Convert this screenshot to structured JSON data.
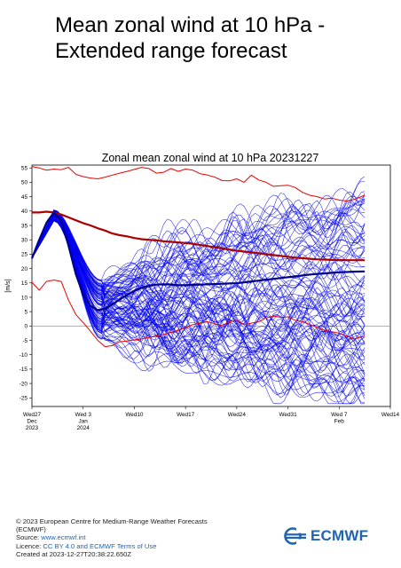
{
  "header": {
    "title_line1": "Mean zonal wind at 10 hPa -",
    "title_line2": "Extended range forecast"
  },
  "colors": {
    "ensemble": "#0000ee",
    "ensemble_mean": "#00008b",
    "climate_mean": "#aa0000",
    "climate_extremes": "#ee0000",
    "zero_line": "#888888",
    "brand": "#1f63b3"
  },
  "footer": {
    "copyright_line1": "© 2023 European Centre for Medium-Range Weather Forecasts",
    "copyright_line2": "(ECMWF)",
    "source_label": "Source:",
    "source_link": "www.ecmwf.int",
    "licence_label": "Licence:",
    "licence_link": "CC BY 4.0 and ECMWF Terms of Use",
    "created": "Created at 2023-12-27T20:38:22.650Z"
  },
  "logo": {
    "text": "ECMWF"
  },
  "chart_data": {
    "type": "line",
    "title": "Zonal mean zonal wind at 10 hPa 20231227",
    "ylabel": "[m/s]",
    "xlabel": "",
    "ylim": [
      -28,
      56
    ],
    "xlim": [
      0,
      49
    ],
    "x_unit": "days since Wed27 Dec 2023",
    "yticks": [
      -25,
      -20,
      -15,
      -10,
      -5,
      0,
      5,
      10,
      15,
      20,
      25,
      30,
      35,
      40,
      45,
      50,
      55
    ],
    "xticks": [
      {
        "x": 0,
        "lines": [
          "Wed27",
          "Dec",
          "2023"
        ]
      },
      {
        "x": 7,
        "lines": [
          "Wed 3",
          "Jan",
          "2024"
        ]
      },
      {
        "x": 14,
        "lines": [
          "Wed10"
        ]
      },
      {
        "x": 21,
        "lines": [
          "Wed17"
        ]
      },
      {
        "x": 28,
        "lines": [
          "Wed24"
        ]
      },
      {
        "x": 35,
        "lines": [
          "Wed31"
        ]
      },
      {
        "x": 42,
        "lines": [
          "Wed 7",
          "Feb"
        ]
      },
      {
        "x": 49,
        "lines": [
          "Wed14"
        ]
      }
    ],
    "grid": false,
    "forecast_end_day": 45.5,
    "series": [
      {
        "name": "",
        "role": "climate_max",
        "x": [
          0,
          1,
          2,
          3,
          4,
          5,
          6,
          7,
          8,
          9,
          10,
          11,
          12,
          13,
          14,
          15,
          16,
          17,
          18,
          19,
          20,
          21,
          22,
          23,
          24,
          25,
          26,
          27,
          28,
          29,
          30,
          31,
          32,
          33,
          34,
          35,
          36,
          37,
          38,
          39,
          40,
          41,
          42,
          43,
          44,
          45.5
        ],
        "values": [
          55.5,
          55,
          54.2,
          54.6,
          54.4,
          55.2,
          52.8,
          52,
          51.5,
          51.2,
          51.8,
          52.5,
          53.2,
          53.8,
          54.5,
          55.2,
          54.8,
          53.2,
          53.5,
          54.8,
          53.8,
          54.6,
          54.2,
          53,
          52.5,
          51.8,
          50.6,
          50.5,
          51.2,
          50,
          52.5,
          50.8,
          50,
          48.6,
          48.8,
          49,
          48.2,
          46.5,
          45.5,
          45,
          44.2,
          44.5,
          43.8,
          43.5,
          44,
          45.5
        ]
      },
      {
        "name": "",
        "role": "climate_mean",
        "x": [
          0,
          1,
          2,
          3,
          4,
          5,
          6,
          7,
          8,
          9,
          10,
          11,
          12,
          13,
          14,
          15,
          16,
          17,
          18,
          19,
          20,
          21,
          22,
          23,
          24,
          25,
          26,
          27,
          28,
          29,
          30,
          31,
          32,
          33,
          34,
          35,
          36,
          37,
          38,
          39,
          40,
          41,
          42,
          43,
          44,
          45.5
        ],
        "values": [
          39.5,
          39.5,
          39.8,
          39.5,
          38.8,
          37.8,
          36.8,
          35.8,
          35,
          34,
          33.2,
          32.2,
          31.6,
          31.2,
          30.6,
          30.2,
          30,
          29.8,
          29.5,
          29.3,
          29.1,
          28.9,
          28.6,
          28.2,
          27.8,
          27.4,
          27,
          26.6,
          26.2,
          25.9,
          25.6,
          25.3,
          25,
          24.7,
          24.4,
          24.1,
          23.8,
          23.6,
          23.4,
          23.2,
          23.1,
          23,
          23,
          22.9,
          22.9,
          22.9
        ]
      },
      {
        "name": "",
        "role": "climate_min",
        "x": [
          0,
          1,
          2,
          3,
          4,
          5,
          6,
          7,
          8,
          9,
          10,
          11,
          12,
          13,
          14,
          15,
          16,
          17,
          18,
          19,
          20,
          21,
          22,
          23,
          24,
          25,
          26,
          27,
          28,
          29,
          30,
          31,
          32,
          33,
          34,
          35,
          36,
          37,
          38,
          39,
          40,
          41,
          42,
          43,
          44,
          45.5
        ],
        "values": [
          15.2,
          12.5,
          15.5,
          16,
          15.5,
          9,
          4,
          1.2,
          -1.8,
          -5,
          -7.2,
          -6.8,
          -5.5,
          -5.2,
          -4.8,
          -4.5,
          -4,
          -3.5,
          -3,
          -2.2,
          -1.5,
          -0.5,
          0.5,
          1,
          1.5,
          0.8,
          0.2,
          1.5,
          2,
          0.5,
          1,
          1.5,
          2.8,
          3.5,
          3,
          3.2,
          2,
          1.5,
          0.5,
          -0.5,
          -1.5,
          -2,
          -2.5,
          -3.5,
          -4.5,
          -3.5
        ]
      },
      {
        "name": "",
        "role": "ensemble_mean",
        "x": [
          0,
          1,
          2,
          3,
          4,
          5,
          6,
          7,
          8,
          9,
          10,
          11,
          12,
          13,
          14,
          15,
          16,
          17,
          18,
          19,
          20,
          21,
          22,
          23,
          24,
          25,
          26,
          27,
          28,
          29,
          30,
          31,
          32,
          33,
          34,
          35,
          36,
          37,
          38,
          39,
          40,
          41,
          42,
          43,
          44,
          45.5
        ],
        "values": [
          23.5,
          30,
          36,
          39.5,
          36.5,
          28,
          18,
          11,
          7,
          5.5,
          6,
          7.5,
          9.3,
          10.8,
          12.2,
          13.3,
          14,
          14.4,
          14.5,
          14.4,
          14.2,
          14.2,
          14.3,
          14.4,
          14.5,
          14.6,
          14.7,
          14.8,
          14.9,
          15.2,
          15.5,
          15.8,
          16.1,
          16.4,
          16.7,
          17,
          17.3,
          17.6,
          17.9,
          18.1,
          18.3,
          18.5,
          18.7,
          18.8,
          18.9,
          19
        ]
      }
    ],
    "ensemble_members": {
      "count": 101,
      "note": "spaghetti of individual ensemble members",
      "x_start": 0,
      "x_end": 45.5,
      "start_value": 23.5,
      "peak_day": 3,
      "peak_value": 39.5,
      "trough_day": 9.5,
      "trough_range": [
        -5,
        16
      ],
      "end_range": [
        -25,
        44
      ]
    }
  }
}
